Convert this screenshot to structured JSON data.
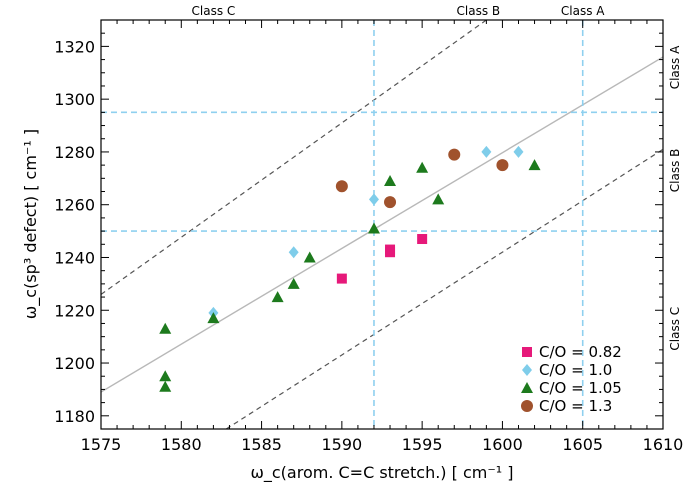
{
  "chart_data": {
    "type": "scatter",
    "xlabel": "ω_c(arom. C=C stretch.) [ cm⁻¹ ]",
    "ylabel": "ω_c(sp³ defect) [ cm⁻¹ ]",
    "xlim": [
      1575,
      1610
    ],
    "ylim": [
      1175,
      1330
    ],
    "x_ticks": [
      1575,
      1580,
      1585,
      1590,
      1595,
      1600,
      1605,
      1610
    ],
    "y_ticks": [
      1180,
      1200,
      1220,
      1240,
      1260,
      1280,
      1300,
      1320
    ],
    "grid": false,
    "legend_position": "bottom-right",
    "top_labels": [
      {
        "text": "Class C",
        "x": 1582
      },
      {
        "text": "Class B",
        "x": 1598.5
      },
      {
        "text": "Class A",
        "x": 1605
      }
    ],
    "right_labels": [
      {
        "text": "Class A",
        "y": 1312
      },
      {
        "text": "Class B",
        "y": 1273
      },
      {
        "text": "Class C",
        "y": 1213
      }
    ],
    "boundaries": {
      "x": [
        1592,
        1605
      ],
      "y": [
        1250,
        1295
      ]
    },
    "reference_lines": [
      {
        "style": "solid",
        "points": [
          [
            1575,
            1189
          ],
          [
            1610,
            1316
          ]
        ]
      },
      {
        "style": "dashed",
        "points": [
          [
            1575,
            1226
          ],
          [
            1599,
            1330
          ]
        ]
      },
      {
        "style": "dashed",
        "points": [
          [
            1582.8,
            1175
          ],
          [
            1610,
            1281
          ]
        ]
      }
    ],
    "series": [
      {
        "name": "C/O = 0.82",
        "marker": "square",
        "color": "#e6197a",
        "points": [
          [
            1590,
            1232
          ],
          [
            1593,
            1243
          ],
          [
            1593,
            1242
          ],
          [
            1595,
            1247
          ]
        ]
      },
      {
        "name": "C/O = 1.0",
        "marker": "diamond",
        "color": "#7fcdea",
        "points": [
          [
            1582,
            1219
          ],
          [
            1587,
            1242
          ],
          [
            1592,
            1262
          ],
          [
            1599,
            1280
          ],
          [
            1601,
            1280
          ]
        ]
      },
      {
        "name": "C/O = 1.05",
        "marker": "triangle",
        "color": "#1d7a1d",
        "points": [
          [
            1579,
            1213
          ],
          [
            1579,
            1195
          ],
          [
            1579,
            1191
          ],
          [
            1582,
            1217
          ],
          [
            1586,
            1225
          ],
          [
            1587,
            1230
          ],
          [
            1588,
            1240
          ],
          [
            1592,
            1251
          ],
          [
            1593,
            1269
          ],
          [
            1595,
            1274
          ],
          [
            1596,
            1262
          ],
          [
            1602,
            1275
          ]
        ]
      },
      {
        "name": "C/O = 1.3",
        "marker": "circle",
        "color": "#a0522d",
        "points": [
          [
            1590,
            1267
          ],
          [
            1593,
            1261
          ],
          [
            1597,
            1279
          ],
          [
            1600,
            1275
          ]
        ]
      }
    ]
  }
}
